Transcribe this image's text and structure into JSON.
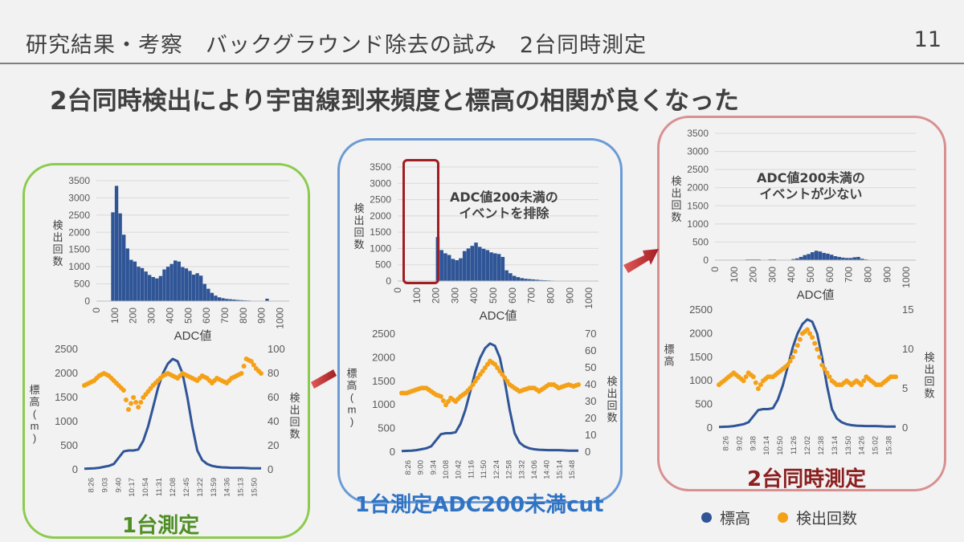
{
  "slide": {
    "title": "研究結果・考察　バックグラウンド除去の試み　2台同時測定",
    "page_number": "11",
    "headline": "2台同時検出により宇宙線到来頻度と標高の相関が良くなった"
  },
  "panels": {
    "left_label": "1台測定",
    "middle_label": "1台測定ADC200未満cut",
    "right_label": "2台同時測定",
    "middle_callout": [
      "ADC値200未満の",
      "イベントを排除"
    ],
    "right_callout": [
      "ADC値200未満の",
      "イベントが少ない"
    ]
  },
  "legend": {
    "altitude": "標高",
    "count": "検出回数",
    "altitude_color": "#2f5597",
    "count_color": "#f4a118"
  },
  "axis_text": {
    "hist_xlabel": "ADC値",
    "hist_ylabel": "検出回数",
    "alt_ylabel": "標高(m)",
    "alt_ylabel_right": "標高",
    "count_ylabel": "検出回数"
  },
  "chart_data": [
    {
      "id": "hist_single",
      "type": "bar",
      "title": "",
      "xlabel": "ADC値",
      "ylabel": "検出回数",
      "xlim": [
        0,
        1050
      ],
      "ylim": [
        0,
        3500
      ],
      "yticks": [
        0,
        500,
        1000,
        1500,
        2000,
        2500,
        3000,
        3500
      ],
      "xticks": [
        0,
        100,
        200,
        300,
        400,
        500,
        600,
        700,
        800,
        900,
        1000
      ],
      "bin_width": 20,
      "values": [
        0,
        0,
        0,
        0,
        2580,
        3350,
        2550,
        1930,
        1530,
        1200,
        1150,
        1000,
        960,
        860,
        760,
        700,
        660,
        730,
        920,
        1000,
        1080,
        1180,
        1150,
        990,
        950,
        880,
        770,
        810,
        740,
        500,
        360,
        240,
        160,
        110,
        85,
        65,
        55,
        45,
        35,
        28,
        22,
        18,
        12,
        8,
        5,
        3,
        70
      ],
      "color": "#2f5597"
    },
    {
      "id": "hist_cut",
      "type": "bar",
      "title": "",
      "xlabel": "ADC値",
      "ylabel": "検出回数",
      "xlim": [
        0,
        1050
      ],
      "ylim": [
        0,
        3500
      ],
      "yticks": [
        0,
        500,
        1000,
        1500,
        2000,
        2500,
        3000,
        3500
      ],
      "xticks": [
        0,
        100,
        200,
        300,
        400,
        500,
        600,
        700,
        800,
        900,
        1000
      ],
      "bin_width": 20,
      "values": [
        0,
        0,
        0,
        0,
        0,
        0,
        0,
        0,
        0,
        0,
        1350,
        950,
        850,
        800,
        680,
        640,
        700,
        920,
        1000,
        1080,
        1180,
        1050,
        990,
        950,
        880,
        850,
        830,
        740,
        330,
        240,
        160,
        120,
        90,
        70,
        60,
        50,
        40,
        30,
        25,
        20,
        15,
        10,
        6,
        3,
        2,
        1,
        0
      ],
      "color": "#2f5597"
    },
    {
      "id": "hist_dual",
      "type": "bar",
      "title": "",
      "xlabel": "ADC値",
      "ylabel": "検出回数",
      "xlim": [
        0,
        1050
      ],
      "ylim": [
        0,
        3500
      ],
      "yticks": [
        0,
        500,
        1000,
        1500,
        2000,
        2500,
        3000,
        3500
      ],
      "xticks": [
        0,
        100,
        200,
        300,
        400,
        500,
        600,
        700,
        800,
        900,
        1000
      ],
      "bin_width": 20,
      "values": [
        0,
        0,
        0,
        0,
        0,
        0,
        0,
        0,
        20,
        20,
        20,
        20,
        10,
        10,
        20,
        20,
        10,
        10,
        10,
        10,
        30,
        50,
        90,
        140,
        170,
        220,
        260,
        240,
        200,
        180,
        150,
        110,
        90,
        70,
        60,
        60,
        80,
        90,
        40,
        20,
        10,
        10,
        5,
        0,
        0,
        0,
        0
      ],
      "color": "#2f5597"
    },
    {
      "id": "time_single",
      "type": "line",
      "title": "",
      "xlabel": "",
      "ylabel": "標高(m)",
      "y2label": "検出回数",
      "ylim": [
        0,
        2500
      ],
      "y2lim": [
        0,
        100
      ],
      "yticks": [
        0,
        500,
        1000,
        1500,
        2000,
        2500
      ],
      "y2ticks": [
        0,
        20,
        40,
        60,
        80,
        100
      ],
      "xticks": [
        "8:26",
        "9:03",
        "9:40",
        "10:17",
        "10:54",
        "11:31",
        "12:08",
        "12:45",
        "13:22",
        "13:59",
        "14:36",
        "15:13",
        "15:50"
      ],
      "series": [
        {
          "name": "標高",
          "axis": "left",
          "color": "#2f5597",
          "values": [
            20,
            25,
            30,
            40,
            60,
            80,
            120,
            250,
            380,
            400,
            400,
            420,
            600,
            900,
            1300,
            1700,
            2000,
            2200,
            2300,
            2250,
            2000,
            1500,
            900,
            400,
            200,
            120,
            80,
            60,
            50,
            45,
            40,
            40,
            40,
            35,
            30,
            30,
            30
          ]
        },
        {
          "name": "検出回数",
          "axis": "right",
          "color": "#f4a118",
          "values": [
            70,
            72,
            74,
            78,
            80,
            78,
            74,
            70,
            66,
            50,
            60,
            52,
            60,
            65,
            70,
            74,
            78,
            80,
            78,
            76,
            80,
            78,
            76,
            74,
            78,
            76,
            72,
            76,
            74,
            72,
            76,
            78,
            80,
            92,
            90,
            84,
            80
          ]
        }
      ]
    },
    {
      "id": "time_cut",
      "type": "line",
      "title": "",
      "xlabel": "",
      "ylabel": "標高(m)",
      "y2label": "検出回数",
      "ylim": [
        0,
        2500
      ],
      "y2lim": [
        0,
        70
      ],
      "yticks": [
        0,
        500,
        1000,
        1500,
        2000,
        2500
      ],
      "y2ticks": [
        0,
        10,
        20,
        30,
        40,
        50,
        60,
        70
      ],
      "xticks": [
        "8:26",
        "9:00",
        "9:34",
        "10:08",
        "10:42",
        "11:16",
        "11:50",
        "12:24",
        "12:58",
        "13:32",
        "14:06",
        "14:40",
        "15:14",
        "15:48"
      ],
      "series": [
        {
          "name": "標高",
          "axis": "left",
          "color": "#2f5597",
          "values": [
            20,
            25,
            30,
            40,
            60,
            80,
            120,
            250,
            380,
            400,
            400,
            420,
            600,
            900,
            1300,
            1700,
            2000,
            2200,
            2300,
            2250,
            2000,
            1500,
            900,
            400,
            200,
            120,
            80,
            60,
            50,
            45,
            40,
            40,
            40,
            35,
            30,
            30,
            30
          ]
        },
        {
          "name": "検出回数",
          "axis": "right",
          "color": "#f4a118",
          "values": [
            35,
            35,
            36,
            37,
            38,
            38,
            36,
            34,
            33,
            28,
            32,
            30,
            33,
            35,
            38,
            42,
            46,
            50,
            54,
            52,
            48,
            44,
            40,
            38,
            36,
            37,
            38,
            38,
            36,
            38,
            40,
            40,
            38,
            39,
            40,
            39,
            40
          ]
        }
      ]
    },
    {
      "id": "time_dual",
      "type": "line",
      "title": "",
      "xlabel": "",
      "ylabel": "標高",
      "y2label": "検出回数",
      "ylim": [
        0,
        2500
      ],
      "y2lim": [
        0,
        15
      ],
      "yticks": [
        0,
        500,
        1000,
        1500,
        2000,
        2500
      ],
      "y2ticks": [
        0,
        5,
        10,
        15
      ],
      "xticks": [
        "8:26",
        "9:02",
        "9:38",
        "10:14",
        "10:50",
        "11:26",
        "12:02",
        "12:38",
        "13:14",
        "13:50",
        "14:26",
        "15:02",
        "15:38"
      ],
      "series": [
        {
          "name": "標高",
          "axis": "left",
          "color": "#2f5597",
          "values": [
            20,
            25,
            30,
            40,
            60,
            80,
            120,
            250,
            380,
            400,
            400,
            420,
            600,
            900,
            1300,
            1700,
            2000,
            2200,
            2300,
            2250,
            2000,
            1500,
            900,
            400,
            200,
            120,
            80,
            60,
            50,
            45,
            40,
            40,
            40,
            35,
            30,
            30,
            30
          ]
        },
        {
          "name": "検出回数",
          "axis": "right",
          "color": "#f4a118",
          "values": [
            5.5,
            6,
            6.5,
            7,
            6.5,
            6,
            7,
            6.5,
            5,
            6,
            6.5,
            6.5,
            7,
            7.5,
            8,
            9,
            10.5,
            12,
            12.5,
            11.5,
            10,
            8,
            7,
            6,
            5.5,
            5.5,
            6,
            5.5,
            6,
            5.5,
            6.5,
            6,
            5.5,
            5.5,
            6,
            6.5,
            6.5
          ]
        }
      ]
    }
  ]
}
